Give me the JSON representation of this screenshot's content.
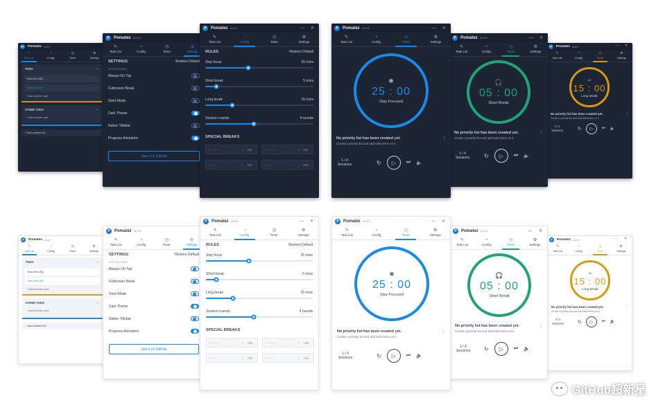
{
  "app": {
    "name": "Pomatez",
    "version": "v1.0.0"
  },
  "tabs": [
    {
      "label": "Task List",
      "icon": "clipboard-icon",
      "glyph": "✎"
    },
    {
      "label": "Config",
      "icon": "gauge-icon",
      "glyph": "◔"
    },
    {
      "label": "Timer",
      "icon": "timer-icon",
      "glyph": "◷"
    },
    {
      "label": "Settings",
      "icon": "gear-icon",
      "glyph": "⚙"
    }
  ],
  "tasklist": {
    "todo_title": "TODO",
    "items": [
      "Todo item #02",
      "Todo item #01"
    ],
    "add_card": "+ Add another card",
    "other_title": "OTHER TODO",
    "add_list": "+ Add another list",
    "menu": "···"
  },
  "settings": {
    "title": "SETTINGS",
    "restore": "Restore Default",
    "section": "APP FEATURES",
    "items": [
      {
        "label": "Always On Top",
        "on": false
      },
      {
        "label": "Fullscreen Break",
        "on": false
      },
      {
        "label": "Strict Mode",
        "on": false
      },
      {
        "label": "Dark Theme",
        "on": true
      },
      {
        "label": "Native Titlebar",
        "on": false
      },
      {
        "label": "Progress Animation",
        "on": true
      }
    ],
    "github": "Star it on GitHub"
  },
  "config": {
    "title": "RULES",
    "restore": "Restore Default",
    "rules": [
      {
        "label": "Stay focus",
        "value": "25 mins",
        "fraction": 0.4
      },
      {
        "label": "Short break",
        "value": "5 mins",
        "fraction": 0.1
      },
      {
        "label": "Long break",
        "value": "15 mins",
        "fraction": 0.25
      },
      {
        "label": "Session rounds",
        "value": "4 rounds",
        "fraction": 0.45
      }
    ],
    "special": "SPECIAL BREAKS",
    "time_placeholder": "-- : -- --",
    "min": "min",
    "time_placeholder2": "-- : --"
  },
  "timers": [
    {
      "time": "25 : 00",
      "label": "Stay Focused",
      "color": "#1a8ae8",
      "icon": "brain-icon",
      "glyph": "✺"
    },
    {
      "time": "05 : 00",
      "label": "Short Break",
      "color": "#1ea476",
      "icon": "headphones-icon",
      "glyph": "🎧"
    },
    {
      "time": "15 : 00",
      "label": "Long Break",
      "color": "#d8980f",
      "icon": "coffee-icon",
      "glyph": "☕"
    }
  ],
  "notice": {
    "title": "No priority list has been created yet.",
    "text": "Create a priority list and add task items on it."
  },
  "session": {
    "count": "1 / 4",
    "label": "Sessions",
    "count_alt": "4 / 4"
  },
  "controls": {
    "reset": "↻",
    "play": "▷",
    "skip": "⏭",
    "volume": "🔈"
  },
  "window_buttons": {
    "min": "—",
    "close": "✕"
  },
  "watermark": {
    "text": "GitHub超新星",
    "icon": "wechat-icon"
  }
}
